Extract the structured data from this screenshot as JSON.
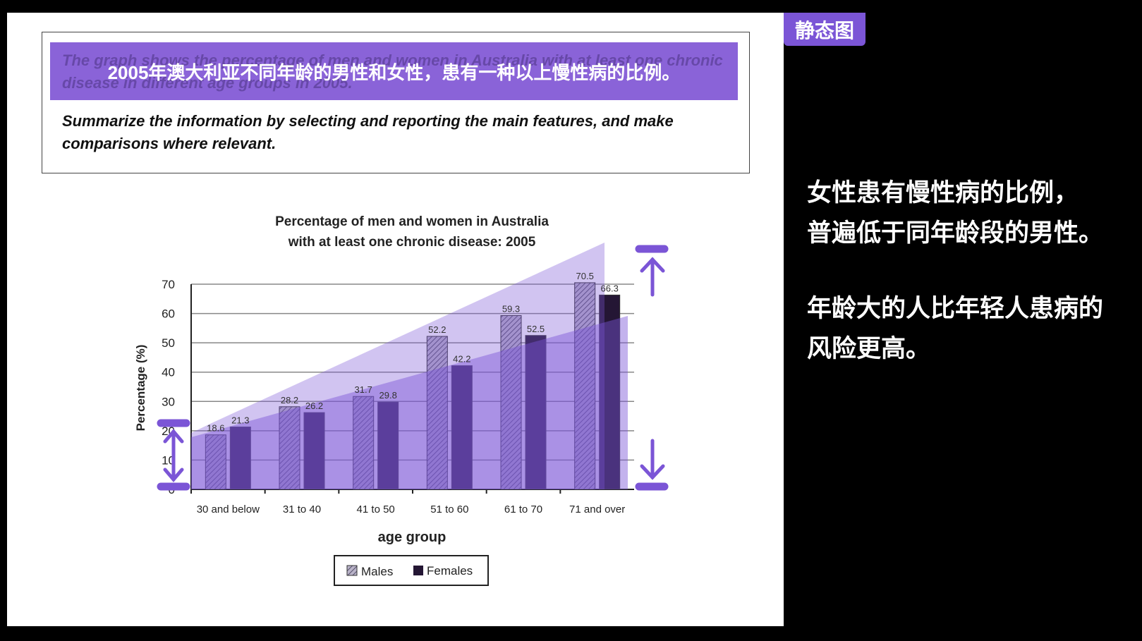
{
  "badge": "静态图",
  "question": {
    "banner_cn": "2005年澳大利亚不同年龄的男性和女性，患有一种以上慢性病的比例。",
    "ghost_en": "The graph shows the percentage of men and women in Australia with at least one chronic disease in different age groups in 2005.",
    "instruction": "Summarize the information by selecting and reporting the main features, and make comparisons where relevant."
  },
  "side_notes": [
    "女性患有慢性病的比例，",
    "普遍低于同年龄段的男性。",
    "年龄大的人比年轻人患病的",
    "风险更高。"
  ],
  "colors": {
    "accent": "#7b55d6",
    "males": "#8a7bb8",
    "females": "#241634"
  },
  "chart_data": {
    "type": "bar",
    "title": [
      "Percentage of men and women in Australia",
      "with at least one chronic disease: 2005"
    ],
    "xlabel": "age group",
    "ylabel": "Percentage (%)",
    "ylim": [
      0,
      70
    ],
    "yticks": [
      "0",
      "10",
      "20",
      "30",
      "40",
      "50",
      "60",
      "70"
    ],
    "categories": [
      "30 and below",
      "31 to 40",
      "41 to 50",
      "51 to 60",
      "61 to 70",
      "71 and over"
    ],
    "series": [
      {
        "name": "Males",
        "values": [
          18.6,
          28.2,
          31.7,
          52.2,
          59.3,
          70.5
        ],
        "labels": [
          "18.6",
          "28.2",
          "31.7",
          "52.2",
          "59.3",
          "70.5"
        ]
      },
      {
        "name": "Females",
        "values": [
          21.3,
          26.2,
          29.8,
          42.2,
          52.5,
          66.3
        ],
        "labels": [
          "21.3",
          "26.2",
          "29.8",
          "42.2",
          "52.5",
          "66.3"
        ]
      }
    ],
    "legend": "bottom",
    "grid": true
  }
}
